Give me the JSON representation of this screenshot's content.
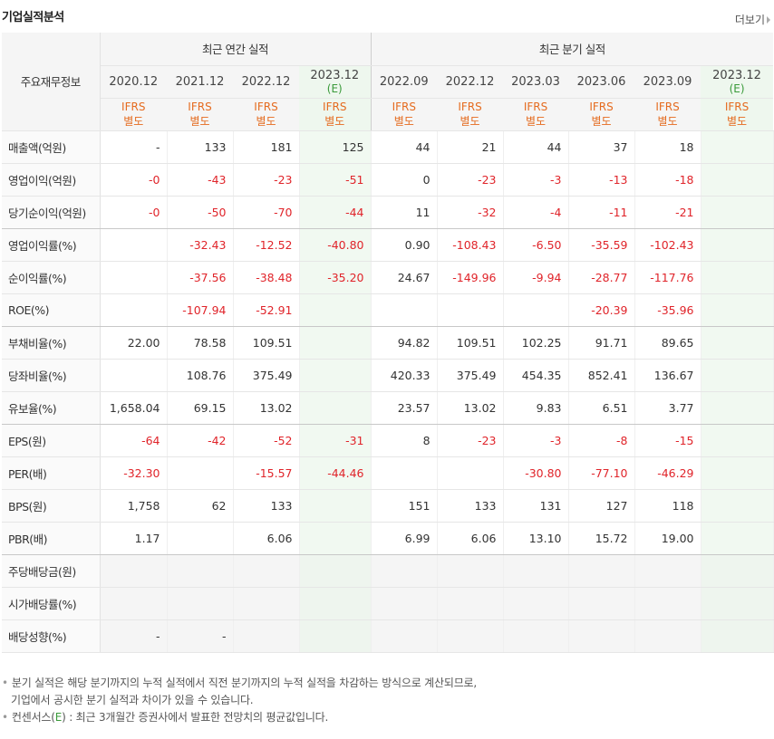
{
  "header": {
    "title": "기업실적분석",
    "more_label": "더보기"
  },
  "table": {
    "label_header": "주요재무정보",
    "group_annual": "최근 연간 실적",
    "group_quarter": "최근 분기 실적",
    "ifrs_line1": "IFRS",
    "ifrs_line2": "별도",
    "est_mark": "(E)",
    "annual_dates": [
      "2020.12",
      "2021.12",
      "2022.12",
      "2023.12"
    ],
    "quarter_dates": [
      "2022.09",
      "2022.12",
      "2023.03",
      "2023.06",
      "2023.09",
      "2023.12"
    ],
    "rows": [
      {
        "label": "매출액(억원)",
        "values": [
          "-",
          "133",
          "181",
          "125",
          "44",
          "21",
          "44",
          "37",
          "18",
          ""
        ]
      },
      {
        "label": "영업이익(억원)",
        "values": [
          "-0",
          "-43",
          "-23",
          "-51",
          "0",
          "-23",
          "-3",
          "-13",
          "-18",
          ""
        ]
      },
      {
        "label": "당기순이익(억원)",
        "values": [
          "-0",
          "-50",
          "-70",
          "-44",
          "11",
          "-32",
          "-4",
          "-11",
          "-21",
          ""
        ]
      },
      {
        "label": "영업이익률(%)",
        "values": [
          "",
          "-32.43",
          "-12.52",
          "-40.80",
          "0.90",
          "-108.43",
          "-6.50",
          "-35.59",
          "-102.43",
          ""
        ]
      },
      {
        "label": "순이익률(%)",
        "values": [
          "",
          "-37.56",
          "-38.48",
          "-35.20",
          "24.67",
          "-149.96",
          "-9.94",
          "-28.77",
          "-117.76",
          ""
        ]
      },
      {
        "label": "ROE(%)",
        "values": [
          "",
          "-107.94",
          "-52.91",
          "",
          "",
          "",
          "",
          "-20.39",
          "-35.96",
          ""
        ]
      },
      {
        "label": "부채비율(%)",
        "values": [
          "22.00",
          "78.58",
          "109.51",
          "",
          "94.82",
          "109.51",
          "102.25",
          "91.71",
          "89.65",
          ""
        ]
      },
      {
        "label": "당좌비율(%)",
        "values": [
          "",
          "108.76",
          "375.49",
          "",
          "420.33",
          "375.49",
          "454.35",
          "852.41",
          "136.67",
          ""
        ]
      },
      {
        "label": "유보율(%)",
        "values": [
          "1,658.04",
          "69.15",
          "13.02",
          "",
          "23.57",
          "13.02",
          "9.83",
          "6.51",
          "3.77",
          ""
        ]
      },
      {
        "label": "EPS(원)",
        "values": [
          "-64",
          "-42",
          "-52",
          "-31",
          "8",
          "-23",
          "-3",
          "-8",
          "-15",
          ""
        ]
      },
      {
        "label": "PER(배)",
        "values": [
          "-32.30",
          "",
          "-15.57",
          "-44.46",
          "",
          "",
          "-30.80",
          "-77.10",
          "-46.29",
          ""
        ]
      },
      {
        "label": "BPS(원)",
        "values": [
          "1,758",
          "62",
          "133",
          "",
          "151",
          "133",
          "131",
          "127",
          "118",
          ""
        ]
      },
      {
        "label": "PBR(배)",
        "values": [
          "1.17",
          "",
          "6.06",
          "",
          "6.99",
          "6.06",
          "13.10",
          "15.72",
          "19.00",
          ""
        ]
      },
      {
        "label": "주당배당금(원)",
        "values": [
          "",
          "",
          "",
          "",
          "",
          "",
          "",
          "",
          "",
          ""
        ]
      },
      {
        "label": "시가배당률(%)",
        "values": [
          "",
          "",
          "",
          "",
          "",
          "",
          "",
          "",
          "",
          ""
        ]
      },
      {
        "label": "배당성향(%)",
        "values": [
          "-",
          "-",
          "",
          "",
          "",
          "",
          "",
          "",
          "",
          ""
        ]
      }
    ]
  },
  "notes": {
    "line1": "분기 실적은 해당 분기까지의 누적 실적에서 직전 분기까지의 누적 실적을 차감하는 방식으로 계산되므로,",
    "line2": "기업에서 공시한 분기 실적과 차이가 있을 수 있습니다.",
    "line3_prefix": "컨센서스(",
    "line3_e": "E",
    "line3_suffix": ") : 최근 3개월간 증권사에서 발표한 전망치의 평균값입니다."
  },
  "colors": {
    "negative": "#e0242a",
    "ifrs": "#e56b1f",
    "estimate": "#3a9a3a"
  }
}
